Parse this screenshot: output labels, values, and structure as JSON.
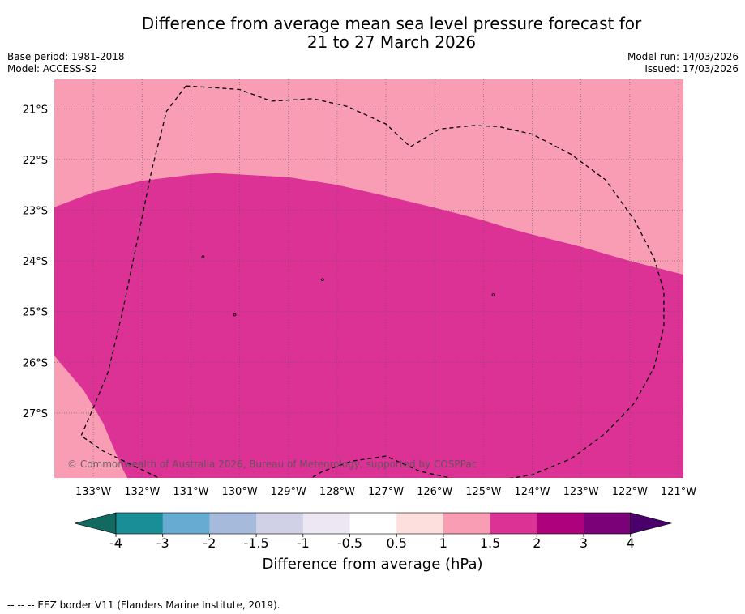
{
  "title": {
    "line1": "Difference from average mean sea level pressure forecast for",
    "line2": "21 to 27 March 2026"
  },
  "meta": {
    "base_period": "Base period: 1981-2018",
    "model": "Model: ACCESS-S2",
    "model_run": "Model run: 14/03/2026",
    "issued": "Issued: 17/03/2026"
  },
  "map": {
    "lon_range": [
      -133.8,
      -120.9
    ],
    "lat_range": [
      -28.28,
      -20.42
    ],
    "lon_labels": [
      "133°W",
      "132°W",
      "131°W",
      "130°W",
      "129°W",
      "128°W",
      "127°W",
      "126°W",
      "125°W",
      "124°W",
      "123°W",
      "122°W",
      "121°W"
    ],
    "lon_values": [
      -133,
      -132,
      -131,
      -130,
      -129,
      -128,
      -127,
      -126,
      -125,
      -124,
      -123,
      -122,
      -121
    ],
    "lat_labels": [
      "21°S",
      "22°S",
      "23°S",
      "24°S",
      "25°S",
      "26°S",
      "27°S"
    ],
    "lat_values": [
      -21,
      -22,
      -23,
      -24,
      -25,
      -26,
      -27
    ],
    "background_color": "#f99db4",
    "anomaly_color": "#dc3296",
    "copyright": "© Commonwealth of Australia 2026, Bureau of Meteorology, supported by COSPPac",
    "region_1_5_to_2_boundary": [
      [
        -133.8,
        -22.94
      ],
      [
        -133.0,
        -22.65
      ],
      [
        -132.0,
        -22.42
      ],
      [
        -131.0,
        -22.3
      ],
      [
        -130.5,
        -22.27
      ],
      [
        -129.0,
        -22.35
      ],
      [
        -128.0,
        -22.5
      ],
      [
        -127.0,
        -22.72
      ],
      [
        -126.0,
        -22.95
      ],
      [
        -125.0,
        -23.2
      ],
      [
        -124.5,
        -23.35
      ],
      [
        -124.0,
        -23.48
      ],
      [
        -123.0,
        -23.72
      ],
      [
        -122.0,
        -24.0
      ],
      [
        -120.9,
        -24.27
      ]
    ],
    "region_lower_left_edge": [
      [
        -133.8,
        -25.87
      ],
      [
        -133.2,
        -26.55
      ],
      [
        -132.8,
        -27.2
      ],
      [
        -132.4,
        -28.1
      ],
      [
        -132.3,
        -28.28
      ]
    ],
    "eez_border": [
      [
        -131.1,
        -20.55
      ],
      [
        -130.6,
        -20.58
      ],
      [
        -130.0,
        -20.62
      ],
      [
        -129.35,
        -20.85
      ],
      [
        -128.5,
        -20.8
      ],
      [
        -127.8,
        -20.95
      ],
      [
        -127.0,
        -21.3
      ],
      [
        -126.5,
        -21.75
      ],
      [
        -125.9,
        -21.4
      ],
      [
        -125.2,
        -21.33
      ],
      [
        -124.7,
        -21.35
      ],
      [
        -124.0,
        -21.5
      ],
      [
        -123.2,
        -21.9
      ],
      [
        -122.5,
        -22.4
      ],
      [
        -121.9,
        -23.2
      ],
      [
        -121.5,
        -23.95
      ],
      [
        -121.3,
        -24.6
      ],
      [
        -121.3,
        -25.3
      ],
      [
        -121.5,
        -26.1
      ],
      [
        -121.9,
        -26.8
      ],
      [
        -122.5,
        -27.4
      ],
      [
        -123.2,
        -27.9
      ],
      [
        -124.0,
        -28.22
      ],
      [
        -124.8,
        -28.34
      ],
      [
        -125.5,
        -28.32
      ],
      [
        -126.3,
        -28.15
      ],
      [
        -127.0,
        -27.85
      ],
      [
        -127.7,
        -27.95
      ],
      [
        -128.3,
        -28.15
      ],
      [
        -129.0,
        -28.55
      ],
      [
        -129.8,
        -28.72
      ],
      [
        -130.5,
        -28.65
      ],
      [
        -131.3,
        -28.45
      ],
      [
        -132.0,
        -28.12
      ],
      [
        -132.8,
        -27.75
      ],
      [
        -133.25,
        -27.45
      ],
      [
        -133.0,
        -26.9
      ],
      [
        -132.7,
        -26.2
      ],
      [
        -132.4,
        -25.0
      ],
      [
        -132.1,
        -23.6
      ],
      [
        -131.8,
        -22.2
      ],
      [
        -131.5,
        -21.05
      ],
      [
        -131.1,
        -20.55
      ]
    ],
    "islands": [
      {
        "lon": -130.75,
        "lat": -23.92
      },
      {
        "lon": -128.3,
        "lat": -24.37
      },
      {
        "lon": -124.8,
        "lat": -24.67
      },
      {
        "lon": -130.1,
        "lat": -25.06
      }
    ]
  },
  "colorbar": {
    "label": "Difference from average (hPa)",
    "colors": [
      "#12695f",
      "#1a8e96",
      "#68abd2",
      "#a6bbdb",
      "#d0d1e6",
      "#ece7f2",
      "#ffffff",
      "#fde0dd",
      "#f99db4",
      "#dc3296",
      "#ae017e",
      "#7a0177",
      "#49006a"
    ],
    "ticks": [
      "-4",
      "-3",
      "-2",
      "-1.5",
      "-1",
      "-0.5",
      "0.5",
      "1",
      "1.5",
      "2",
      "3",
      "4"
    ]
  },
  "footer": {
    "legend_text": "--  --  -- EEZ border V11 (Flanders Marine Institute, 2019)."
  }
}
